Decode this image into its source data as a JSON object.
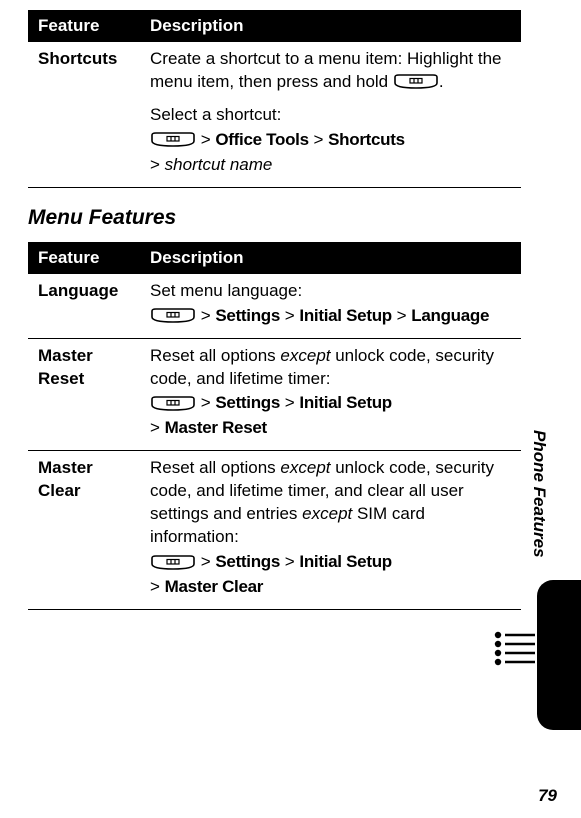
{
  "table1": {
    "headers": [
      "Feature",
      "Description"
    ],
    "rows": [
      {
        "name": "Shortcuts",
        "blocks": [
          {
            "text": "Create a shortcut to a menu item: Highlight the menu item, then press and hold ",
            "trailingKey": true,
            "after": "."
          },
          {
            "text": "Select a shortcut:",
            "path": [
              {
                "key": true
              },
              {
                "gt": true
              },
              {
                "bold": "Office Tools"
              },
              {
                "gt": true
              },
              {
                "bold": "Shortcuts"
              }
            ],
            "path2": [
              {
                "gt": true
              },
              {
                "ital": "shortcut name"
              }
            ]
          }
        ]
      }
    ]
  },
  "sectionTitle": "Menu Features",
  "table2": {
    "headers": [
      "Feature",
      "Description"
    ],
    "rows": [
      {
        "name": "Language",
        "desc": "Set menu language:",
        "path": [
          {
            "key": true
          },
          {
            "gt": true
          },
          {
            "bold": "Settings"
          },
          {
            "gt": true
          },
          {
            "bold": "Initial Setup"
          },
          {
            "gt": true
          },
          {
            "bold": "Language"
          }
        ]
      },
      {
        "name": "Master Reset",
        "desc_parts": [
          {
            "t": "Reset all options "
          },
          {
            "ital": "except"
          },
          {
            "t": " unlock code, security code, and lifetime timer:"
          }
        ],
        "path": [
          {
            "key": true
          },
          {
            "gt": true
          },
          {
            "bold": "Settings"
          },
          {
            "gt": true
          },
          {
            "bold": "Initial Setup"
          }
        ],
        "path2": [
          {
            "gt": true
          },
          {
            "bold": "Master Reset"
          }
        ]
      },
      {
        "name": "Master Clear",
        "desc_parts": [
          {
            "t": "Reset all options "
          },
          {
            "ital": "except"
          },
          {
            "t": " unlock code, security code, and lifetime timer, and clear all user settings and entries "
          },
          {
            "ital": "except"
          },
          {
            "t": " SIM card information:"
          }
        ],
        "path": [
          {
            "key": true
          },
          {
            "gt": true
          },
          {
            "bold": "Settings"
          },
          {
            "gt": true
          },
          {
            "bold": "Initial Setup"
          }
        ],
        "path2": [
          {
            "gt": true
          },
          {
            "bold": "Master Clear"
          }
        ]
      }
    ]
  },
  "sideLabel": "Phone Features",
  "pageNumber": "79",
  "keySvg": {
    "w": 46,
    "h": 16
  }
}
